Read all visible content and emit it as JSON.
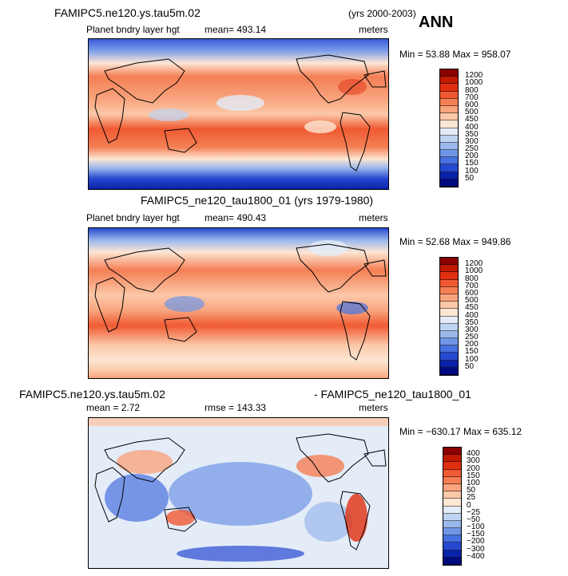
{
  "panel1": {
    "title_left": "FAMIPC5.ne120.ys.tau5m.02",
    "title_right": "(yrs 2000-2003)",
    "season": "ANN",
    "variable": "Planet bndry layer hgt",
    "mean": "mean= 493.14",
    "units": "meters",
    "minmax": "Min =  53.88 Max = 958.07"
  },
  "panel2": {
    "title": "FAMIPC5_ne120_tau1800_01 (yrs 1979-1980)",
    "variable": "Planet bndry layer hgt",
    "mean": "mean= 490.43",
    "units": "meters",
    "minmax": "Min =  52.68 Max = 949.86"
  },
  "panel3": {
    "title_left": "FAMIPC5.ne120.ys.tau5m.02",
    "title_right": "- FAMIPC5_ne120_tau1800_01",
    "mean": "mean =   2.72",
    "rmse": "rmse = 143.33",
    "units": "meters",
    "minmax": "Min = −630.17 Max = 635.12"
  },
  "colorbar_abs": {
    "labels": [
      "1200",
      "1000",
      "800",
      "700",
      "600",
      "500",
      "450",
      "400",
      "350",
      "300",
      "250",
      "200",
      "150",
      "100",
      "50"
    ],
    "colors": [
      "#8b0000",
      "#c01a00",
      "#e03010",
      "#f05a32",
      "#f47f55",
      "#f8a47e",
      "#fbc8a8",
      "#fde6d4",
      "#e4ecf8",
      "#bfd3f2",
      "#9ab8ec",
      "#6f96e6",
      "#4771e0",
      "#2648d0",
      "#0a22a8",
      "#000a80"
    ]
  },
  "colorbar_diff": {
    "labels": [
      "400",
      "300",
      "200",
      "150",
      "100",
      "50",
      "25",
      "0",
      "−25",
      "−50",
      "−100",
      "−150",
      "−200",
      "−300",
      "−400"
    ],
    "colors": [
      "#8b0000",
      "#c01a00",
      "#e03010",
      "#f05a32",
      "#f47f55",
      "#f8a47e",
      "#fbc8a8",
      "#fde6d4",
      "#e4ecf8",
      "#bfd3f2",
      "#9ab8ec",
      "#6f96e6",
      "#4771e0",
      "#2648d0",
      "#0a22a8",
      "#000a80"
    ]
  }
}
